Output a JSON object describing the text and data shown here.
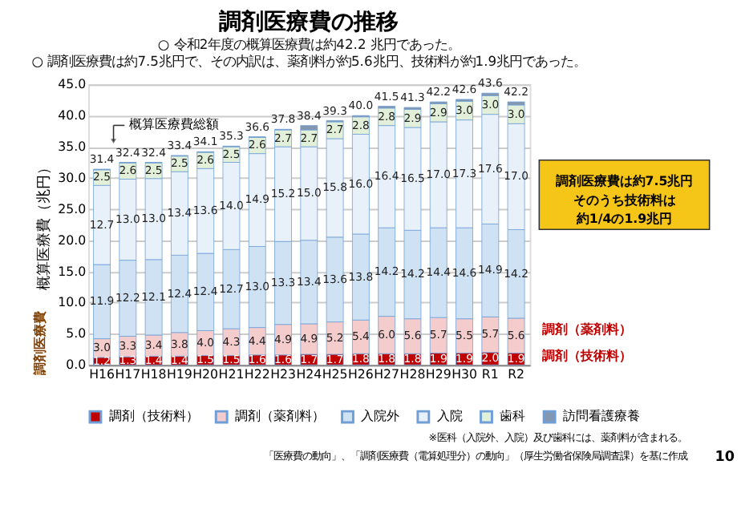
{
  "chart_data": {
    "type": "bar",
    "title": "調剤医療費の推移",
    "subtitle": "○ 令和2年度の概算医療費は約42.2 兆円であった。\n○ 調剤医療費は約7.5兆円で、その内訳は、薬剤料が約5.6兆円、技術料が約1.9兆円であった。",
    "ylabel": "概算医療費（兆円）",
    "stacked": true,
    "categories": [
      "H16",
      "H17",
      "H18",
      "H19",
      "H20",
      "H21",
      "H22",
      "H23",
      "H24",
      "H25",
      "H26",
      "H27",
      "H28",
      "H29",
      "H30",
      "R1",
      "R2"
    ],
    "series": [
      {
        "name": "調剤（技術料）",
        "color": "#c00000",
        "values": [
          1.2,
          1.3,
          1.4,
          1.4,
          1.5,
          1.5,
          1.6,
          1.6,
          1.7,
          1.7,
          1.8,
          1.8,
          1.8,
          1.9,
          1.9,
          2.0,
          1.9
        ],
        "value_labels": [
          "1.2",
          "1.3",
          "1.4",
          "1.4",
          "1.5",
          "1.5",
          "1.6",
          "1.6",
          "1.7",
          "1.7",
          "1.8",
          "1.8",
          "1.8",
          "1.9",
          "1.9",
          "2.0",
          "1.9"
        ]
      },
      {
        "name": "調剤（薬剤料）",
        "color": "#f4cccc",
        "values": [
          3.0,
          3.3,
          3.4,
          3.8,
          4.0,
          4.3,
          4.4,
          4.9,
          4.9,
          5.2,
          5.4,
          6.0,
          5.6,
          5.7,
          5.5,
          5.7,
          5.6
        ],
        "value_labels": [
          "3.0",
          "3.3",
          "3.4",
          "3.8",
          "4.0",
          "4.3",
          "4.4",
          "4.9",
          "4.9",
          "5.2",
          "5.4",
          "6.0",
          "5.6",
          "5.7",
          "5.5",
          "5.7",
          "5.6"
        ]
      },
      {
        "name": "入院外",
        "color": "#cfe2f3",
        "values": [
          11.9,
          12.2,
          12.1,
          12.4,
          12.4,
          12.7,
          13.0,
          13.3,
          13.4,
          13.6,
          13.8,
          14.2,
          14.2,
          14.4,
          14.6,
          14.9,
          14.2
        ],
        "value_labels": [
          "11.9",
          "12.2",
          "12.1",
          "12.4",
          "12.4",
          "12.7",
          "13.0",
          "13.3",
          "13.4",
          "13.6",
          "13.8",
          "14.2",
          "14.2",
          "14.4",
          "14.6",
          "14.9",
          "14.2"
        ]
      },
      {
        "name": "入院",
        "color": "#e8f1fa",
        "values": [
          12.7,
          13.0,
          13.0,
          13.4,
          13.6,
          14.0,
          14.9,
          15.2,
          15.0,
          15.8,
          16.0,
          16.4,
          16.5,
          17.0,
          17.3,
          17.6,
          17.0
        ],
        "value_labels": [
          "12.7",
          "13.0",
          "13.0",
          "13.4",
          "13.6",
          "14.0",
          "14.9",
          "15.2",
          "15.0",
          "15.8",
          "16.0",
          "16.4",
          "16.5",
          "17.0",
          "17.3",
          "17.6",
          "17.0"
        ]
      },
      {
        "name": "歯科",
        "color": "#e2f0d9",
        "values": [
          2.5,
          2.6,
          2.5,
          2.5,
          2.6,
          2.5,
          2.6,
          2.7,
          2.7,
          2.7,
          2.8,
          2.8,
          2.9,
          2.9,
          3.0,
          3.0,
          3.0
        ],
        "value_labels": [
          "2.5",
          "2.6",
          "2.5",
          "2.5",
          "2.6",
          "2.5",
          "2.6",
          "2.7",
          "2.7",
          "2.7",
          "2.8",
          "2.8",
          "2.9",
          "2.9",
          "3.0",
          "3.0",
          "3.0"
        ]
      },
      {
        "name": "訪問看護療養",
        "color": "#8496b0",
        "values": [
          0.1,
          0.1,
          0.1,
          0.1,
          0.1,
          0.1,
          0.1,
          0.1,
          0.7,
          0.2,
          0.2,
          0.3,
          0.3,
          0.3,
          0.3,
          0.4,
          0.5
        ]
      }
    ],
    "totals": [
      "31.4",
      "32.4",
      "32.4",
      "33.4",
      "34.1",
      "35.3",
      "36.6",
      "37.8",
      "38.4",
      "39.3",
      "40.0",
      "41.5",
      "41.3",
      "42.2",
      "42.6",
      "43.6",
      "42.2"
    ],
    "ylim": [
      0,
      45
    ],
    "yticks": [
      {
        "value": 0,
        "label": "0.0"
      },
      {
        "value": 5,
        "label": "5.0"
      },
      {
        "value": 10,
        "label": "10.0"
      },
      {
        "value": 15,
        "label": "15.0"
      },
      {
        "value": 20,
        "label": "20.0"
      },
      {
        "value": 25,
        "label": "25.0"
      },
      {
        "value": 30,
        "label": "30.0"
      },
      {
        "value": 35,
        "label": "35.0"
      },
      {
        "value": 40,
        "label": "40.0"
      },
      {
        "value": 45,
        "label": "45.0"
      }
    ],
    "grid": "y",
    "legend": "bottom",
    "annotations": [
      "概算医療費総額",
      "調剤医療費は約7.5兆円",
      "そのうち技術料は",
      "約1/4の1.9兆円",
      "調剤医療費",
      "調剤（薬剤料）",
      "調剤（技術料）",
      "※医科（入院外、入院）及び歯科には、薬剤料が含まれる。",
      "「医療費の動向」、「調剤医療費（電算処理分）の動向」（厚生労働省保険局調査課）を基に作成",
      "10"
    ]
  }
}
